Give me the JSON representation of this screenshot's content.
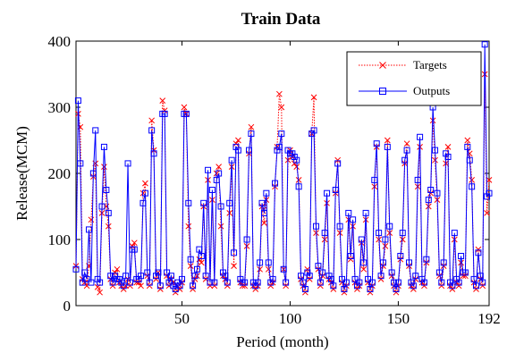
{
  "chart_data": {
    "type": "line",
    "title": "Train Data",
    "xlabel": "Period (month)",
    "ylabel": "Release(MCM)",
    "xlim": [
      1,
      192
    ],
    "ylim": [
      0,
      400
    ],
    "xticks": [
      50,
      100,
      150,
      192
    ],
    "yticks": [
      0,
      100,
      200,
      300,
      400
    ],
    "grid": false,
    "legend_position": "top-right",
    "series": [
      {
        "name": "Targets",
        "color": "#ff0000",
        "line_style": "dotted",
        "marker": "x",
        "x": [
          1,
          2,
          3,
          4,
          5,
          6,
          7,
          8,
          9,
          10,
          11,
          12,
          13,
          14,
          15,
          16,
          17,
          18,
          19,
          20,
          21,
          22,
          23,
          24,
          25,
          26,
          27,
          28,
          29,
          30,
          31,
          32,
          33,
          34,
          35,
          36,
          37,
          38,
          39,
          40,
          41,
          42,
          43,
          44,
          45,
          46,
          47,
          48,
          49,
          50,
          51,
          52,
          53,
          54,
          55,
          56,
          57,
          58,
          59,
          60,
          61,
          62,
          63,
          64,
          65,
          66,
          67,
          68,
          69,
          70,
          71,
          72,
          73,
          74,
          75,
          76,
          77,
          78,
          79,
          80,
          81,
          82,
          83,
          84,
          85,
          86,
          87,
          88,
          89,
          90,
          91,
          92,
          93,
          94,
          95,
          96,
          97,
          98,
          99,
          100,
          101,
          102,
          103,
          104,
          105,
          106,
          107,
          108,
          109,
          110,
          111,
          112,
          113,
          114,
          115,
          116,
          117,
          118,
          119,
          120,
          121,
          122,
          123,
          124,
          125,
          126,
          127,
          128,
          129,
          130,
          131,
          132,
          133,
          134,
          135,
          136,
          137,
          138,
          139,
          140,
          141,
          142,
          143,
          144,
          145,
          146,
          147,
          148,
          149,
          150,
          151,
          152,
          153,
          154,
          155,
          156,
          157,
          158,
          159,
          160,
          161,
          162,
          163,
          164,
          165,
          166,
          167,
          168,
          169,
          170,
          171,
          172,
          173,
          174,
          175,
          176,
          177,
          178,
          179,
          180,
          181,
          182,
          183,
          184,
          185,
          186,
          187,
          188,
          189,
          190,
          191,
          192
        ],
        "y": [
          60,
          290,
          270,
          40,
          35,
          30,
          60,
          130,
          195,
          215,
          28,
          20,
          140,
          210,
          150,
          120,
          40,
          30,
          50,
          55,
          35,
          30,
          25,
          30,
          40,
          30,
          90,
          95,
          35,
          35,
          30,
          170,
          185,
          45,
          30,
          280,
          235,
          40,
          50,
          25,
          310,
          295,
          45,
          30,
          40,
          35,
          20,
          30,
          25,
          35,
          300,
          290,
          120,
          60,
          25,
          40,
          45,
          70,
          65,
          150,
          40,
          190,
          30,
          160,
          30,
          200,
          210,
          120,
          45,
          40,
          30,
          140,
          210,
          60,
          245,
          250,
          35,
          30,
          30,
          90,
          230,
          270,
          30,
          25,
          30,
          55,
          150,
          125,
          160,
          55,
          30,
          35,
          180,
          240,
          320,
          300,
          55,
          30,
          220,
          235,
          225,
          215,
          210,
          190,
          40,
          30,
          20,
          55,
          40,
          260,
          315,
          110,
          55,
          30,
          45,
          100,
          155,
          40,
          35,
          25,
          170,
          220,
          110,
          35,
          20,
          30,
          130,
          70,
          120,
          35,
          25,
          30,
          95,
          55,
          130,
          35,
          20,
          30,
          180,
          240,
          100,
          40,
          60,
          90,
          250,
          110,
          45,
          30,
          20,
          30,
          70,
          100,
          215,
          245,
          60,
          30,
          25,
          40,
          180,
          240,
          35,
          30,
          65,
          150,
          170,
          280,
          220,
          160,
          45,
          30,
          60,
          215,
          240,
          30,
          25,
          100,
          35,
          30,
          65,
          45,
          45,
          250,
          230,
          190,
          35,
          25,
          85,
          40,
          30,
          350,
          140,
          190
        ]
      },
      {
        "name": "Outputs",
        "color": "#0000ff",
        "line_style": "solid",
        "marker": "square",
        "x": [
          1,
          2,
          3,
          4,
          5,
          6,
          7,
          8,
          9,
          10,
          11,
          12,
          13,
          14,
          15,
          16,
          17,
          18,
          19,
          20,
          21,
          22,
          23,
          24,
          25,
          26,
          27,
          28,
          29,
          30,
          31,
          32,
          33,
          34,
          35,
          36,
          37,
          38,
          39,
          40,
          41,
          42,
          43,
          44,
          45,
          46,
          47,
          48,
          49,
          50,
          51,
          52,
          53,
          54,
          55,
          56,
          57,
          58,
          59,
          60,
          61,
          62,
          63,
          64,
          65,
          66,
          67,
          68,
          69,
          70,
          71,
          72,
          73,
          74,
          75,
          76,
          77,
          78,
          79,
          80,
          81,
          82,
          83,
          84,
          85,
          86,
          87,
          88,
          89,
          90,
          91,
          92,
          93,
          94,
          95,
          96,
          97,
          98,
          99,
          100,
          101,
          102,
          103,
          104,
          105,
          106,
          107,
          108,
          109,
          110,
          111,
          112,
          113,
          114,
          115,
          116,
          117,
          118,
          119,
          120,
          121,
          122,
          123,
          124,
          125,
          126,
          127,
          128,
          129,
          130,
          131,
          132,
          133,
          134,
          135,
          136,
          137,
          138,
          139,
          140,
          141,
          142,
          143,
          144,
          145,
          146,
          147,
          148,
          149,
          150,
          151,
          152,
          153,
          154,
          155,
          156,
          157,
          158,
          159,
          160,
          161,
          162,
          163,
          164,
          165,
          166,
          167,
          168,
          169,
          170,
          171,
          172,
          173,
          174,
          175,
          176,
          177,
          178,
          179,
          180,
          181,
          182,
          183,
          184,
          185,
          186,
          187,
          188,
          189,
          190,
          191,
          192
        ],
        "y": [
          55,
          310,
          215,
          35,
          50,
          40,
          115,
          35,
          200,
          265,
          40,
          35,
          150,
          240,
          175,
          140,
          45,
          35,
          45,
          40,
          40,
          35,
          30,
          45,
          215,
          35,
          85,
          85,
          40,
          40,
          45,
          155,
          170,
          50,
          35,
          265,
          230,
          45,
          50,
          30,
          290,
          290,
          50,
          35,
          45,
          30,
          25,
          35,
          30,
          40,
          290,
          290,
          155,
          70,
          30,
          45,
          55,
          85,
          75,
          155,
          45,
          205,
          35,
          175,
          35,
          190,
          200,
          150,
          50,
          45,
          35,
          155,
          220,
          80,
          240,
          235,
          40,
          35,
          35,
          100,
          235,
          260,
          35,
          30,
          35,
          65,
          155,
          140,
          170,
          65,
          35,
          40,
          185,
          235,
          240,
          260,
          55,
          35,
          235,
          230,
          230,
          225,
          220,
          180,
          45,
          35,
          25,
          50,
          45,
          260,
          265,
          120,
          60,
          35,
          50,
          110,
          170,
          45,
          40,
          30,
          175,
          215,
          120,
          40,
          25,
          35,
          140,
          75,
          130,
          40,
          30,
          35,
          100,
          65,
          140,
          40,
          25,
          35,
          190,
          245,
          110,
          45,
          65,
          100,
          240,
          120,
          50,
          35,
          25,
          35,
          75,
          110,
          220,
          235,
          65,
          35,
          30,
          45,
          190,
          255,
          40,
          35,
          70,
          160,
          175,
          300,
          235,
          170,
          50,
          35,
          65,
          230,
          225,
          35,
          30,
          110,
          40,
          35,
          75,
          50,
          50,
          240,
          220,
          180,
          40,
          30,
          80,
          45,
          35,
          395,
          165,
          170
        ]
      }
    ]
  }
}
